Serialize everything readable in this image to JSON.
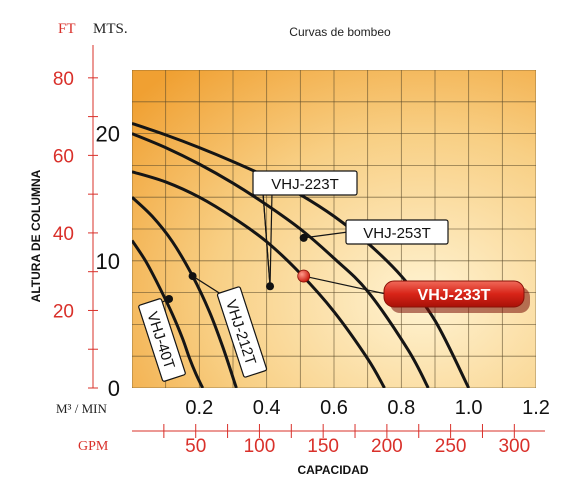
{
  "chart_data": {
    "type": "line",
    "title": "Curvas de bombeo",
    "xlabel": "CAPACIDAD",
    "ylabel": "ALTURA DE COLUMNA",
    "xlim": [
      0,
      1.2
    ],
    "ylim": [
      0,
      25
    ],
    "x_unit": "M³ / MIN",
    "y_unit": "MTS.",
    "x_ticks": [
      "0.2",
      "0.4",
      "0.6",
      "0.8",
      "1.0",
      "1.2"
    ],
    "y_ticks": [
      "0",
      "10",
      "20"
    ],
    "secondary_y": {
      "unit": "FT",
      "ticks": [
        "20",
        "40",
        "60",
        "80"
      ]
    },
    "secondary_x": {
      "unit": "GPM",
      "ticks": [
        "50",
        "100",
        "150",
        "200",
        "250",
        "300"
      ]
    },
    "grid": true,
    "series": [
      {
        "name": "VHJ-40T",
        "x": [
          0,
          0.04,
          0.08,
          0.12,
          0.15,
          0.17,
          0.19,
          0.21
        ],
        "y": [
          11.6,
          10.0,
          8.0,
          5.8,
          3.9,
          2.4,
          1.1,
          0
        ]
      },
      {
        "name": "VHJ-212T",
        "x": [
          0,
          0.06,
          0.12,
          0.18,
          0.23,
          0.27,
          0.31
        ],
        "y": [
          15.0,
          13.5,
          11.5,
          8.8,
          6.0,
          3.2,
          0
        ]
      },
      {
        "name": "VHJ-233T",
        "x": [
          0,
          0.1,
          0.2,
          0.3,
          0.4,
          0.5,
          0.6,
          0.7,
          0.75
        ],
        "y": [
          17.0,
          16.2,
          15.0,
          13.4,
          11.5,
          9.0,
          6.0,
          2.3,
          0
        ]
      },
      {
        "name": "VHJ-223T",
        "x": [
          0,
          0.1,
          0.2,
          0.3,
          0.4,
          0.5,
          0.6,
          0.7,
          0.82,
          0.88
        ],
        "y": [
          20.0,
          18.9,
          17.6,
          16.1,
          14.4,
          12.5,
          10.2,
          7.6,
          3.0,
          0
        ]
      },
      {
        "name": "VHJ-253T",
        "x": [
          0,
          0.1,
          0.2,
          0.3,
          0.4,
          0.5,
          0.6,
          0.7,
          0.8,
          0.9,
          1.0
        ],
        "y": [
          20.8,
          19.9,
          18.9,
          17.8,
          16.6,
          15.2,
          13.5,
          11.4,
          8.8,
          5.3,
          0
        ]
      }
    ],
    "markers": [
      {
        "series": "VHJ-40T",
        "x": 0.11,
        "y": 7.0,
        "label_pos": "below-left"
      },
      {
        "series": "VHJ-212T",
        "x": 0.18,
        "y": 8.8,
        "label_pos": "below-right"
      },
      {
        "series": "VHJ-233T",
        "x": 0.41,
        "y": 8.0,
        "label_pos": "above"
      },
      {
        "series": "VHJ-223T",
        "x": 0.51,
        "y": 11.8,
        "label_pos": "right"
      },
      {
        "series": "VHJ-253T",
        "x": 0.51,
        "y": 8.8,
        "label_pos": "right-highlight"
      }
    ]
  },
  "labels": {
    "ft_unit": "FT",
    "mts_unit": "MTS.",
    "m3_unit": "M³ / MIN",
    "gpm_unit": "GPM",
    "series_tags": {
      "vhj_223t": "VHJ-223T",
      "vhj_253t": "VHJ-253T",
      "vhj_233t": "VHJ-233T",
      "vhj_212t": "VHJ-212T",
      "vhj_40t": "VHJ-40T"
    }
  },
  "colors": {
    "accent_red": "#d9302a",
    "plot_bg_center": "#fff1cc",
    "plot_bg_edge": "#f3a93a"
  }
}
